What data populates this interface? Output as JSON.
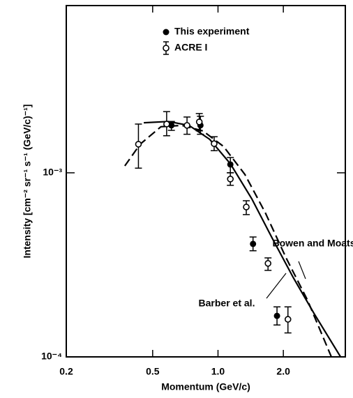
{
  "chart_data": {
    "type": "scatter",
    "xlabel": "Momentum (GeV/c)",
    "ylabel": "Intensity [cm⁻² sr⁻¹ s⁻¹ (GeV/c)⁻¹]",
    "xscale": "log",
    "yscale": "log",
    "xlim": [
      0.2,
      3.86
    ],
    "ylim": [
      0.0001,
      0.0081
    ],
    "xticks": [
      0.2,
      0.5,
      {
        "value": 1,
        "label": "1.0"
      },
      {
        "value": 2,
        "label": "2.0"
      }
    ],
    "yticks": [
      {
        "value": 0.0001,
        "label": "10⁻⁴"
      },
      {
        "value": 0.001,
        "label": "10⁻³"
      }
    ],
    "series": [
      {
        "name": "This experiment",
        "marker": "filled",
        "color": "#000000",
        "x": [
          0.61,
          0.83,
          1.14,
          1.45,
          1.87
        ],
        "values": [
          0.00181,
          0.00181,
          0.00111,
          0.000411,
          0.000167
        ],
        "yerr_low": [
          0.0017,
          0.00162,
          0.001,
          0.000377,
          0.000149
        ],
        "yerr_high": [
          0.0019,
          0.00203,
          0.00121,
          0.000448,
          0.000187
        ]
      },
      {
        "name": "ACRE I",
        "marker": "open",
        "color": "#000000",
        "x": [
          0.43,
          0.58,
          0.72,
          0.82,
          0.96,
          1.14,
          1.35,
          1.7,
          2.1
        ],
        "values": [
          0.00143,
          0.00184,
          0.00181,
          0.00189,
          0.00144,
          0.000925,
          0.000652,
          0.000322,
          0.00016
        ],
        "yerr_low": [
          0.00106,
          0.00159,
          0.00162,
          0.00169,
          0.00132,
          0.000855,
          0.000593,
          0.000295,
          0.000135
        ],
        "yerr_high": [
          0.00184,
          0.00215,
          0.00201,
          0.0021,
          0.00157,
          0.001,
          0.000705,
          0.000345,
          0.000187
        ]
      }
    ],
    "curves": [
      {
        "name": "Bowen and Moats",
        "style": "solid",
        "color": "#000000",
        "x": [
          0.455,
          0.589,
          0.735,
          0.916,
          1.14,
          1.43,
          1.78,
          2.22,
          2.77,
          3.67
        ],
        "values": [
          0.00187,
          0.0019,
          0.00181,
          0.00152,
          0.00112,
          0.000724,
          0.00044,
          0.00027,
          0.000172,
          0.0001
        ]
      },
      {
        "name": "Barber et al.",
        "style": "dashed",
        "color": "#000000",
        "x": [
          0.372,
          0.438,
          0.546,
          0.681,
          0.851,
          1.06,
          1.33,
          1.65,
          2.06,
          2.58,
          3.33
        ],
        "values": [
          0.00109,
          0.00143,
          0.00178,
          0.00181,
          0.00169,
          0.00139,
          0.00098,
          0.000608,
          0.000345,
          0.000204,
          0.0001
        ]
      }
    ]
  }
}
